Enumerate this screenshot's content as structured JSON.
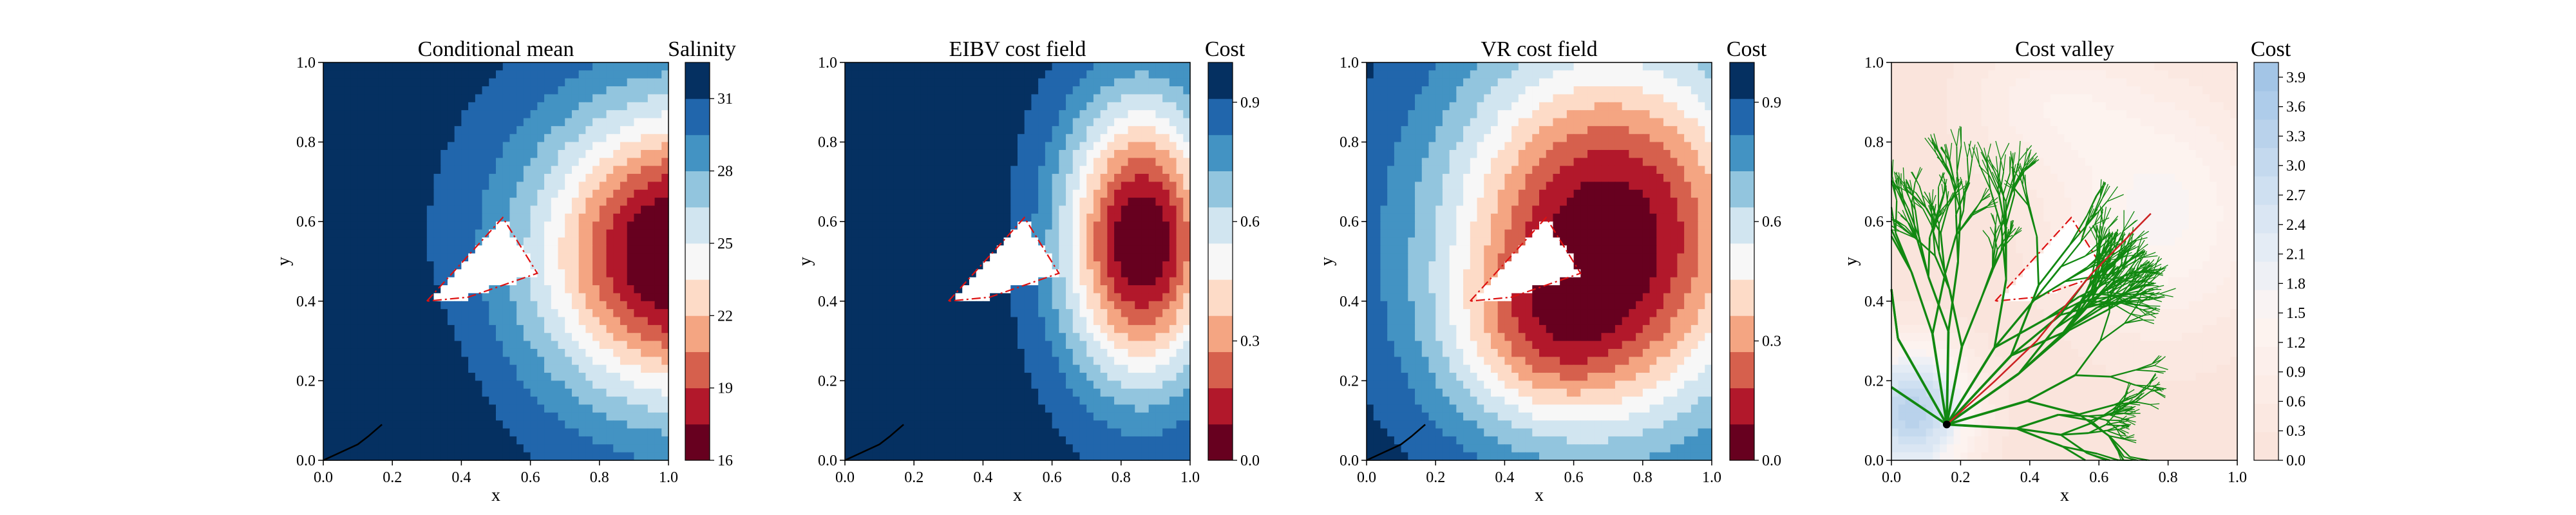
{
  "palette": {
    "salinity": [
      "#67001f",
      "#b2182b",
      "#d6604d",
      "#f4a582",
      "#fddbc7",
      "#f7f7f7",
      "#d1e5f0",
      "#92c5de",
      "#4393c3",
      "#2166ac",
      "#053061"
    ],
    "cost": [
      "#67001f",
      "#b2182b",
      "#d6604d",
      "#f4a582",
      "#fddbc7",
      "#f7f7f7",
      "#d1e5f0",
      "#92c5de",
      "#4393c3",
      "#2166ac",
      "#053061"
    ],
    "valley_cost": [
      "#fae4dc",
      "#fbe8e1",
      "#fcece6",
      "#fcefeb",
      "#fdf3ef",
      "#f9f3f3",
      "#eef0f5",
      "#e4ecf5",
      "#dae6f3",
      "#cfe0f1",
      "#c4d9ee",
      "#b9d2eb",
      "#aeccea",
      "#a3c5e6"
    ],
    "branches": "#118811",
    "path": "#cc2222",
    "polygon_outline": "#dd1111"
  },
  "chart_data": [
    {
      "type": "heatmap",
      "title": "Conditional mean",
      "xlabel": "x",
      "ylabel": "y",
      "xlim": [
        0,
        1
      ],
      "ylim": [
        0,
        1
      ],
      "xticks": [
        "0.0",
        "0.2",
        "0.4",
        "0.6",
        "0.8",
        "1.0"
      ],
      "yticks": [
        "0.0",
        "0.2",
        "0.4",
        "0.6",
        "0.8",
        "1.0"
      ],
      "colorbar": {
        "label": "Salinity",
        "range": [
          16,
          32.5
        ],
        "ticks": [
          "16",
          "19",
          "22",
          "25",
          "28",
          "31"
        ],
        "tick_values": [
          16,
          19,
          22,
          25,
          28,
          31
        ]
      },
      "field": {
        "kind": "salinity"
      }
    },
    {
      "type": "heatmap",
      "title": "EIBV cost field",
      "xlabel": "x",
      "ylabel": "y",
      "xlim": [
        0,
        1
      ],
      "ylim": [
        0,
        1
      ],
      "xticks": [
        "0.0",
        "0.2",
        "0.4",
        "0.6",
        "0.8",
        "1.0"
      ],
      "yticks": [
        "0.0",
        "0.2",
        "0.4",
        "0.6",
        "0.8",
        "1.0"
      ],
      "colorbar": {
        "label": "Cost",
        "range": [
          0,
          1
        ],
        "ticks": [
          "0.0",
          "0.3",
          "0.6",
          "0.9"
        ],
        "tick_values": [
          0,
          0.3,
          0.6,
          0.9
        ]
      },
      "field": {
        "kind": "eibv"
      }
    },
    {
      "type": "heatmap",
      "title": "VR cost field",
      "xlabel": "x",
      "ylabel": "y",
      "xlim": [
        0,
        1
      ],
      "ylim": [
        0,
        1
      ],
      "xticks": [
        "0.0",
        "0.2",
        "0.4",
        "0.6",
        "0.8",
        "1.0"
      ],
      "yticks": [
        "0.0",
        "0.2",
        "0.4",
        "0.6",
        "0.8",
        "1.0"
      ],
      "colorbar": {
        "label": "Cost",
        "range": [
          0,
          1
        ],
        "ticks": [
          "0.0",
          "0.3",
          "0.6",
          "0.9"
        ],
        "tick_values": [
          0,
          0.3,
          0.6,
          0.9
        ]
      },
      "field": {
        "kind": "vr"
      }
    },
    {
      "type": "heatmap",
      "title": "Cost valley",
      "xlabel": "x",
      "ylabel": "y",
      "xlim": [
        0,
        1
      ],
      "ylim": [
        0,
        1
      ],
      "xticks": [
        "0.0",
        "0.2",
        "0.4",
        "0.6",
        "0.8",
        "1.0"
      ],
      "yticks": [
        "0.0",
        "0.2",
        "0.4",
        "0.6",
        "0.8",
        "1.0"
      ],
      "colorbar": {
        "label": "Cost",
        "range": [
          0,
          4.05
        ],
        "ticks": [
          "0.0",
          "0.3",
          "0.6",
          "0.9",
          "1.2",
          "1.5",
          "1.8",
          "2.1",
          "2.4",
          "2.7",
          "3.0",
          "3.3",
          "3.6",
          "3.9"
        ],
        "tick_values": [
          0,
          0.3,
          0.6,
          0.9,
          1.2,
          1.5,
          1.8,
          2.1,
          2.4,
          2.7,
          3.0,
          3.3,
          3.6,
          3.9
        ]
      },
      "field": {
        "kind": "valley"
      },
      "tree": {
        "root": [
          0.16,
          0.09
        ],
        "goal": [
          0.49,
          0.38
        ]
      }
    }
  ],
  "obstacle_polygon": [
    [
      0.3,
      0.4
    ],
    [
      0.52,
      0.61
    ],
    [
      0.62,
      0.47
    ],
    [
      0.42,
      0.41
    ]
  ],
  "trajectory": [
    [
      0.0,
      0.0
    ],
    [
      0.1,
      0.04
    ],
    [
      0.13,
      0.06
    ],
    [
      0.17,
      0.09
    ]
  ]
}
